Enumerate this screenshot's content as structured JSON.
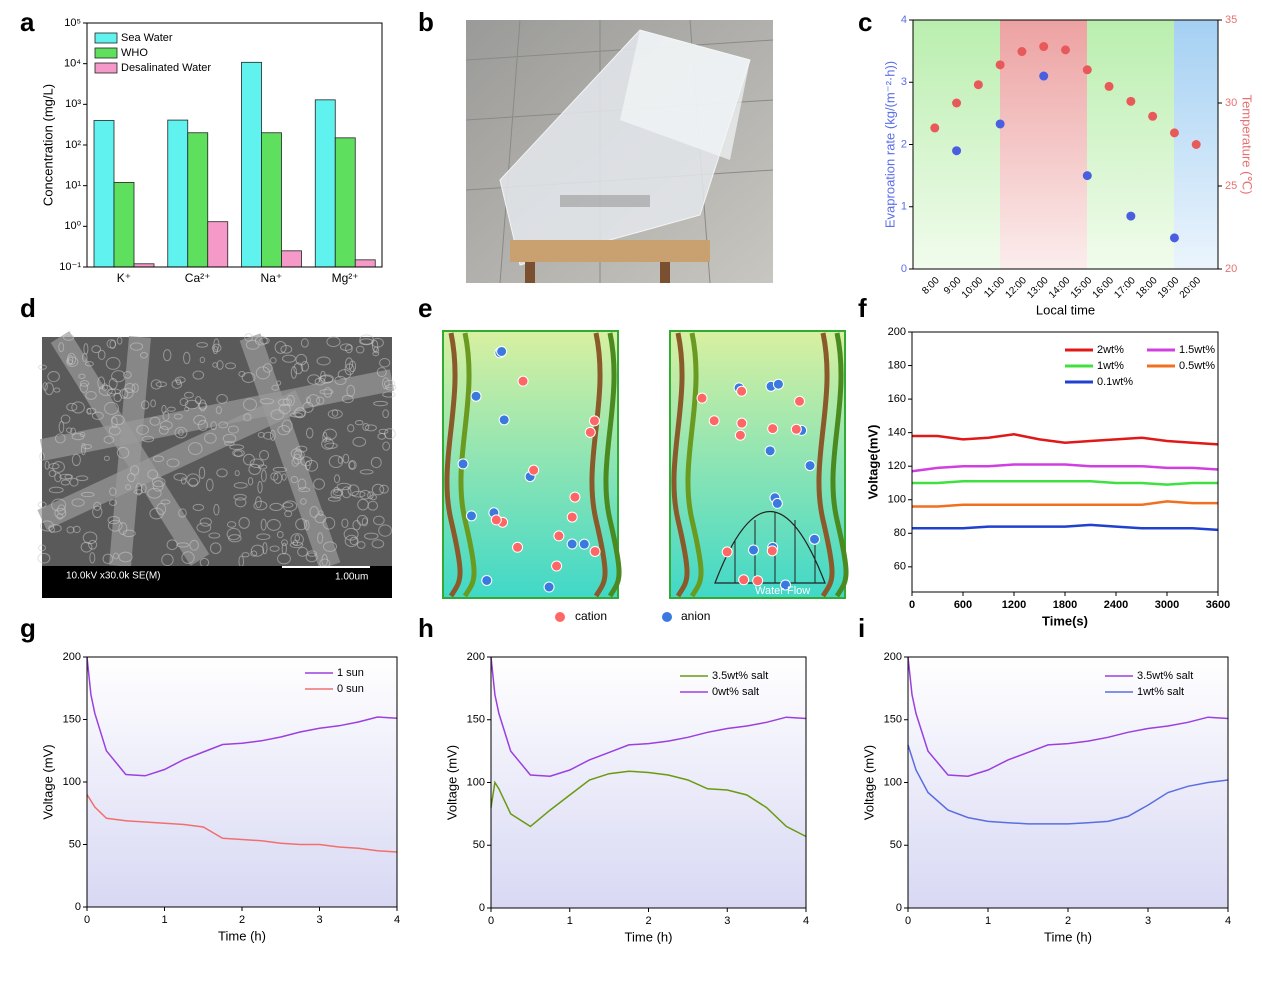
{
  "chart_data": [
    {
      "type": "bar",
      "panel": "a",
      "log": true,
      "ylabel": "Concentration (mg/L)",
      "categories": [
        "K⁺",
        "Ca²⁺",
        "Na⁺",
        "Mg²⁺"
      ],
      "series": [
        {
          "name": "Sea Water",
          "color": "#5ff2ee",
          "values": [
            400,
            410,
            10800,
            1290
          ]
        },
        {
          "name": "WHO",
          "color": "#5ee05e",
          "values": [
            12,
            200,
            200,
            150
          ]
        },
        {
          "name": "Desalinated Water",
          "color": "#f59ac8",
          "values": [
            0.12,
            1.3,
            0.25,
            0.15
          ]
        }
      ],
      "ylim": [
        0.1,
        100000
      ],
      "yticks": [
        {
          "value": 0.1,
          "label": "10⁻¹"
        },
        {
          "value": 1,
          "label": "10⁰"
        },
        {
          "value": 10,
          "label": "10¹"
        },
        {
          "value": 100,
          "label": "10²"
        },
        {
          "value": 1000,
          "label": "10³"
        },
        {
          "value": 10000,
          "label": "10⁴"
        },
        {
          "value": 100000,
          "label": "10⁵"
        }
      ]
    },
    {
      "type": "scatter",
      "panel": "c",
      "xlabel": "Local time",
      "ylabel": "Evaproation rate (kg/(m⁻²·h))",
      "y2label": "Temperature (℃)",
      "categories": [
        "8:00",
        "9:00",
        "10:00",
        "11:00",
        "12:00",
        "13:00",
        "14:00",
        "15:00",
        "16:00",
        "17:00",
        "18:00",
        "19:00",
        "20:00"
      ],
      "series": [
        {
          "name": "Evaporation rate",
          "color": "#4a5fe0",
          "values": [
            null,
            1.9,
            null,
            2.33,
            null,
            3.1,
            null,
            1.5,
            null,
            0.85,
            null,
            0.5,
            null
          ]
        },
        {
          "name": "Temperature",
          "color": "#e85a5a",
          "axis": "y2",
          "values": [
            28.5,
            30,
            31.1,
            32.3,
            33.1,
            33.4,
            33.2,
            32,
            31,
            30.1,
            29.2,
            28.2,
            27.5
          ]
        }
      ],
      "ylim": [
        0,
        4
      ],
      "yticks": [
        0,
        1,
        2,
        3,
        4
      ],
      "y2lim": [
        20,
        35
      ],
      "y2ticks": [
        20,
        25,
        30,
        35
      ]
    },
    {
      "type": "line",
      "panel": "f",
      "xlabel": "Time(s)",
      "ylabel": "Voltage(mV)",
      "x": [
        0,
        300,
        600,
        900,
        1200,
        1500,
        1800,
        2100,
        2400,
        2700,
        3000,
        3300,
        3600
      ],
      "series": [
        {
          "name": "2wt%",
          "color": "#e01818",
          "values": [
            138,
            138,
            136,
            137,
            139,
            136,
            134,
            135,
            136,
            137,
            135,
            134,
            133
          ]
        },
        {
          "name": "1.5wt%",
          "color": "#d040e0",
          "values": [
            117,
            119,
            120,
            120,
            121,
            121,
            121,
            120,
            120,
            120,
            119,
            119,
            118
          ]
        },
        {
          "name": "1wt%",
          "color": "#40e040",
          "values": [
            110,
            110,
            111,
            111,
            111,
            111,
            111,
            111,
            110,
            110,
            109,
            110,
            110
          ]
        },
        {
          "name": "0.5wt%",
          "color": "#f07020",
          "values": [
            96,
            96,
            97,
            97,
            97,
            97,
            97,
            97,
            97,
            97,
            99,
            98,
            98
          ]
        },
        {
          "name": "0.1wt%",
          "color": "#2040d0",
          "values": [
            83,
            83,
            83,
            84,
            84,
            84,
            84,
            85,
            84,
            83,
            83,
            83,
            82
          ]
        }
      ],
      "xlim": [
        0,
        3600
      ],
      "xticks": [
        0,
        600,
        1200,
        1800,
        2400,
        3000,
        3600
      ],
      "ylim": [
        45,
        200
      ],
      "yticks": [
        60,
        80,
        100,
        120,
        140,
        160,
        180,
        200
      ]
    },
    {
      "type": "line",
      "panel": "g",
      "xlabel": "Time (h)",
      "ylabel": "Voltage (mV)",
      "x": [
        0,
        0.05,
        0.1,
        0.25,
        0.5,
        0.75,
        1,
        1.25,
        1.5,
        1.75,
        2,
        2.25,
        2.5,
        2.75,
        3,
        3.25,
        3.5,
        3.75,
        4
      ],
      "series": [
        {
          "name": "1 sun",
          "color": "#9b3fe0",
          "values": [
            200,
            170,
            155,
            125,
            106,
            105,
            110,
            118,
            124,
            130,
            131,
            133,
            136,
            140,
            143,
            145,
            148,
            152,
            151
          ]
        },
        {
          "name": "0 sun",
          "color": "#f07070",
          "values": [
            90,
            85,
            80,
            71,
            69,
            68,
            67,
            66,
            64,
            55,
            54,
            53,
            51,
            50,
            50,
            48,
            47,
            45,
            44
          ]
        }
      ],
      "xlim": [
        0,
        4
      ],
      "xticks": [
        0,
        1,
        2,
        3,
        4
      ],
      "ylim": [
        0,
        200
      ],
      "yticks": [
        0,
        50,
        100,
        150,
        200
      ]
    },
    {
      "type": "line",
      "panel": "h",
      "xlabel": "Time (h)",
      "ylabel": "Voltage (mV)",
      "x": [
        0,
        0.05,
        0.1,
        0.25,
        0.5,
        0.75,
        1,
        1.25,
        1.5,
        1.75,
        2,
        2.25,
        2.5,
        2.75,
        3,
        3.25,
        3.5,
        3.75,
        4
      ],
      "series": [
        {
          "name": "3.5wt% salt",
          "color": "#6a9a10",
          "values": [
            80,
            100,
            95,
            75,
            65,
            78,
            90,
            102,
            107,
            109,
            108,
            106,
            102,
            95,
            94,
            90,
            80,
            65,
            57
          ]
        },
        {
          "name": "0wt% salt",
          "color": "#9b3fe0",
          "values": [
            200,
            170,
            155,
            125,
            106,
            105,
            110,
            118,
            124,
            130,
            131,
            133,
            136,
            140,
            143,
            145,
            148,
            152,
            151
          ]
        }
      ],
      "xlim": [
        0,
        4
      ],
      "xticks": [
        0,
        1,
        2,
        3,
        4
      ],
      "ylim": [
        0,
        200
      ],
      "yticks": [
        0,
        50,
        100,
        150,
        200
      ]
    },
    {
      "type": "line",
      "panel": "i",
      "xlabel": "Time (h)",
      "ylabel": "Voltage (mV)",
      "x": [
        0,
        0.05,
        0.1,
        0.25,
        0.5,
        0.75,
        1,
        1.25,
        1.5,
        1.75,
        2,
        2.25,
        2.5,
        2.75,
        3,
        3.25,
        3.5,
        3.75,
        4
      ],
      "series": [
        {
          "name": "3.5wt% salt",
          "color": "#9b3fe0",
          "values": [
            200,
            170,
            155,
            125,
            106,
            105,
            110,
            118,
            124,
            130,
            131,
            133,
            136,
            140,
            143,
            145,
            148,
            152,
            151
          ]
        },
        {
          "name": "1wt% salt",
          "color": "#5a6ee0",
          "values": [
            130,
            120,
            110,
            92,
            78,
            72,
            69,
            68,
            67,
            67,
            67,
            68,
            69,
            73,
            82,
            92,
            97,
            100,
            102
          ]
        }
      ],
      "xlim": [
        0,
        4
      ],
      "xticks": [
        0,
        1,
        2,
        3,
        4
      ],
      "ylim": [
        0,
        200
      ],
      "yticks": [
        0,
        50,
        100,
        150,
        200
      ]
    }
  ],
  "photo_b": {
    "panel": "b"
  },
  "sem_d": {
    "panel": "d",
    "info": "10.0kV x30.0k SE(M)",
    "scale": "1.00um"
  },
  "diagram_e": {
    "panel": "e",
    "flow": "Water Flow",
    "legend": [
      "cation",
      "anion"
    ]
  }
}
